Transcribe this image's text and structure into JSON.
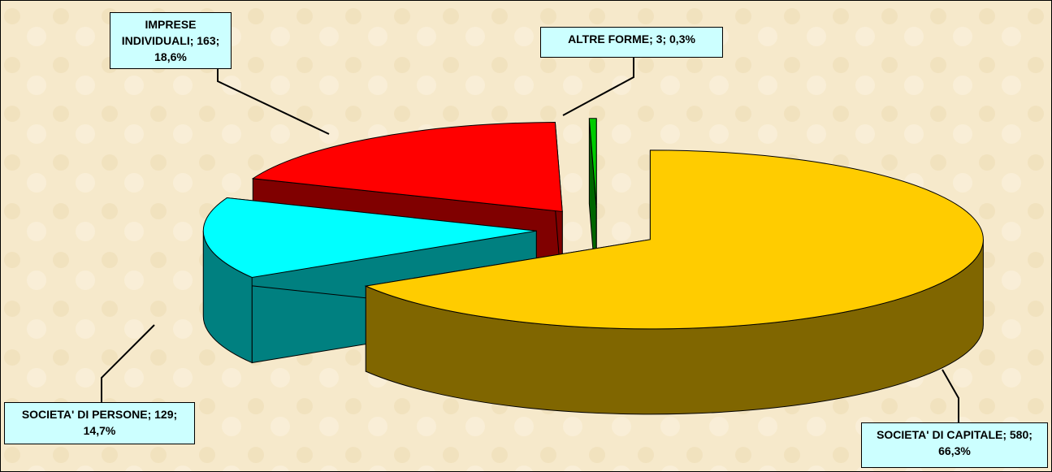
{
  "chart_data": {
    "type": "pie3d",
    "values": [
      580,
      129,
      163,
      3
    ],
    "value_labels": [
      "SOCIETA' DI CAPITALE; 580; 66,3%",
      "SOCIETA' DI PERSONE; 129; 14,7%",
      "IMPRESE INDIVIDUALI; 163; 18,6%",
      "ALTRE FORME; 3; 0,3%"
    ],
    "colors": [
      "#FFCC00",
      "#00FFFF",
      "#FF0000",
      "#00CC00"
    ],
    "side_colors": [
      "#806600",
      "#008080",
      "#800000",
      "#006600"
    ]
  }
}
